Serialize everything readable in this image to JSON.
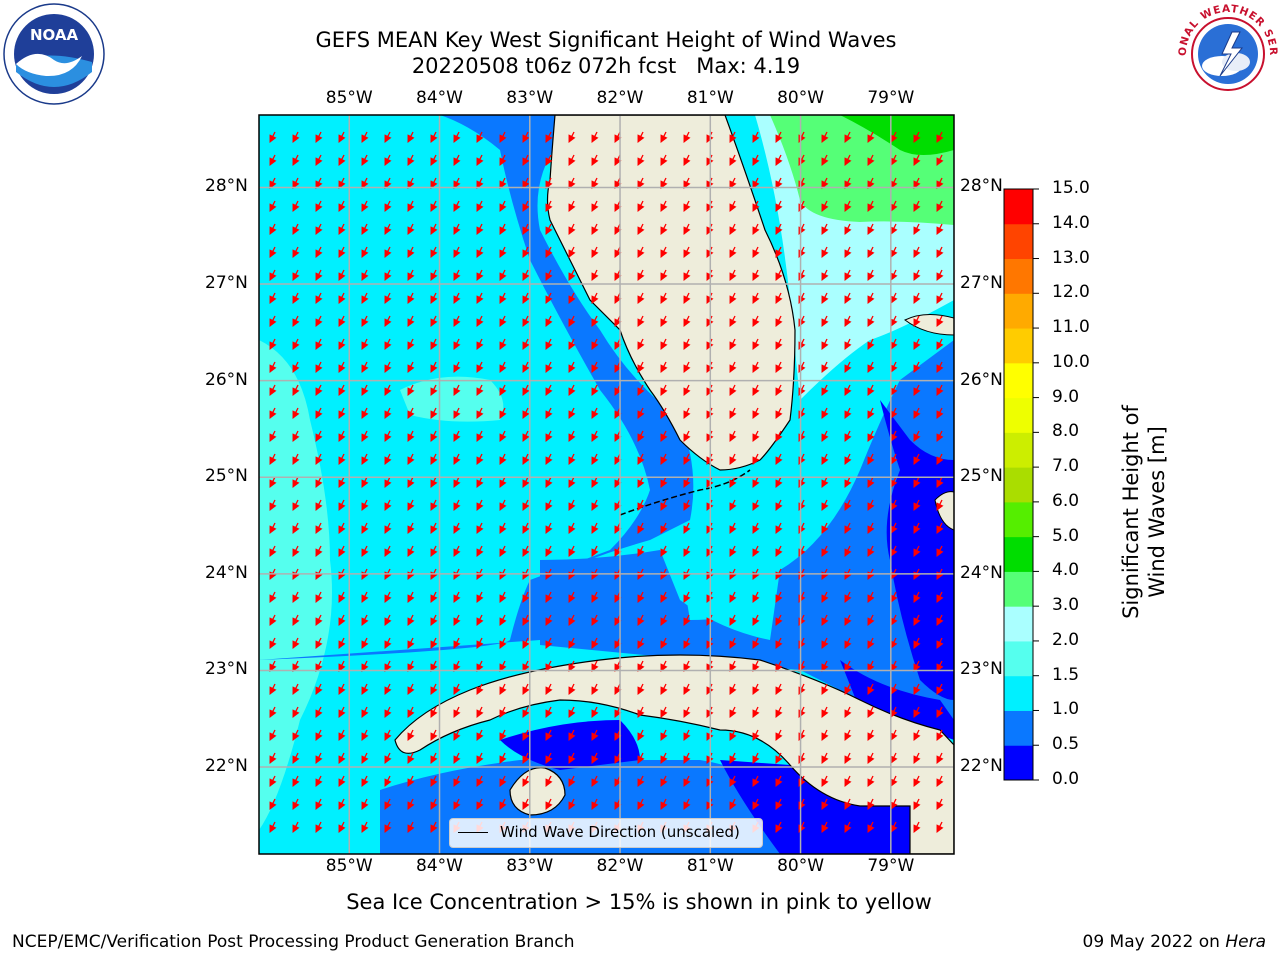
{
  "header": {
    "title_line1": "GEFS MEAN Key West Significant Height of Wind Waves",
    "title_line2": "20220508 t06z 072h fcst   Max: 4.19"
  },
  "logos": {
    "left": {
      "name": "noaa-logo",
      "text": "NOAA",
      "ring_text": "NATIONAL OCEANIC AND ATMOSPHERIC ADMINISTRATION · U.S. DEPARTMENT OF COMMERCE"
    },
    "right": {
      "name": "nws-logo",
      "ring_text": "NATIONAL WEATHER SERVICE"
    }
  },
  "map": {
    "lon_labels": [
      "85°W",
      "84°W",
      "83°W",
      "82°W",
      "81°W",
      "80°W",
      "79°W"
    ],
    "lat_labels": [
      "28°N",
      "27°N",
      "26°N",
      "25°N",
      "24°N",
      "23°N",
      "22°N"
    ],
    "lon_values": [
      -85,
      -84,
      -83,
      -82,
      -81,
      -80,
      -79
    ],
    "lat_values": [
      28,
      27,
      26,
      25,
      24,
      23,
      22
    ],
    "extent": {
      "lon_min": -86.0,
      "lon_max": -78.3,
      "lat_min": 21.1,
      "lat_max": 28.75
    },
    "land_color": "#eeeddb",
    "arrow_color": "#ff0000",
    "grid_color": "#b0b0b0",
    "legend_label": "Wind Wave Direction (unscaled)"
  },
  "colorbar": {
    "title": "Significant Height of Wind Waves [m]",
    "ticks": [
      "15.0",
      "14.0",
      "13.0",
      "12.0",
      "11.0",
      "10.0",
      "9.0",
      "8.0",
      "7.0",
      "6.0",
      "5.0",
      "4.0",
      "3.0",
      "2.0",
      "1.5",
      "1.0",
      "0.5",
      "0.0"
    ],
    "bins": [
      {
        "from": 0.0,
        "to": 0.5,
        "color": "#0000ff"
      },
      {
        "from": 0.5,
        "to": 1.0,
        "color": "#0a78ff"
      },
      {
        "from": 1.0,
        "to": 1.5,
        "color": "#00f0ff"
      },
      {
        "from": 1.5,
        "to": 2.0,
        "color": "#55ffee"
      },
      {
        "from": 2.0,
        "to": 3.0,
        "color": "#aaffff"
      },
      {
        "from": 3.0,
        "to": 4.0,
        "color": "#55ff77"
      },
      {
        "from": 4.0,
        "to": 5.0,
        "color": "#00dd00"
      },
      {
        "from": 5.0,
        "to": 6.0,
        "color": "#55ee00"
      },
      {
        "from": 6.0,
        "to": 7.0,
        "color": "#aadd00"
      },
      {
        "from": 7.0,
        "to": 8.0,
        "color": "#ccee00"
      },
      {
        "from": 8.0,
        "to": 9.0,
        "color": "#eeff00"
      },
      {
        "from": 9.0,
        "to": 10.0,
        "color": "#ffff00"
      },
      {
        "from": 10.0,
        "to": 11.0,
        "color": "#ffcc00"
      },
      {
        "from": 11.0,
        "to": 12.0,
        "color": "#ffaa00"
      },
      {
        "from": 12.0,
        "to": 13.0,
        "color": "#ff7700"
      },
      {
        "from": 13.0,
        "to": 14.0,
        "color": "#ff4400"
      },
      {
        "from": 14.0,
        "to": 15.0,
        "color": "#ff0000"
      }
    ]
  },
  "caption": "Sea Ice Concentration > 15% is shown in pink to yellow",
  "footer": {
    "left": "NCEP/EMC/Verification Post Processing Product Generation Branch",
    "right_prefix": "09 May 2022 on ",
    "right_machine": "Hera"
  }
}
